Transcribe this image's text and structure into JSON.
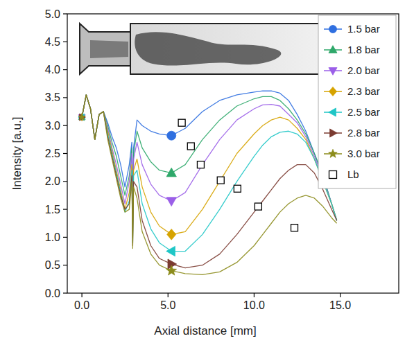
{
  "chart_data": {
    "type": "line",
    "x_label": "Axial distance [mm]",
    "y_label": "Intensity [a.u.]",
    "xlim": [
      -0.85,
      18.4
    ],
    "ylim": [
      0,
      5
    ],
    "xticks": [
      {
        "value": 0,
        "label": "0.0"
      },
      {
        "value": 5,
        "label": "5.0"
      },
      {
        "value": 10,
        "label": "10.0"
      },
      {
        "value": 15,
        "label": "15.0"
      }
    ],
    "yticks": [
      {
        "value": 0,
        "label": "0.0"
      },
      {
        "value": 0.5,
        "label": "0.5"
      },
      {
        "value": 1,
        "label": "1.0"
      },
      {
        "value": 1.5,
        "label": "1.5"
      },
      {
        "value": 2,
        "label": "2.0"
      },
      {
        "value": 2.5,
        "label": "2.5"
      },
      {
        "value": 3,
        "label": "3.0"
      },
      {
        "value": 3.5,
        "label": "3.5"
      },
      {
        "value": 4,
        "label": "4.0"
      },
      {
        "value": 4.5,
        "label": "4.5"
      },
      {
        "value": 5,
        "label": "5.0"
      }
    ],
    "grid": false,
    "legend": "top-right",
    "x": [
      0,
      0.25,
      0.5,
      0.75,
      1.0,
      1.25,
      1.5,
      1.75,
      2.0,
      2.25,
      2.5,
      2.75,
      2.9,
      2.95,
      3.0,
      3.2,
      3.5,
      4.0,
      4.5,
      5.2,
      6.0,
      7.0,
      8.0,
      9.0,
      10.0,
      10.5,
      11.0,
      11.5,
      12.0,
      12.5,
      13.0,
      13.5,
      14.0,
      14.5,
      14.8
    ],
    "series": [
      {
        "name": "1.5 bar",
        "color": "#2f6fe0",
        "marker": "circle",
        "marker_x": [
          0,
          5.2
        ],
        "values": [
          3.15,
          3.55,
          3.3,
          2.75,
          3.2,
          3.25,
          3.05,
          2.8,
          2.6,
          2.3,
          1.9,
          2.3,
          2.7,
          1.5,
          2.6,
          3.1,
          3.0,
          2.9,
          2.85,
          2.82,
          2.95,
          3.25,
          3.45,
          3.55,
          3.6,
          3.62,
          3.62,
          3.58,
          3.45,
          3.2,
          2.9,
          2.5,
          2.1,
          1.6,
          1.3
        ]
      },
      {
        "name": "1.8 bar",
        "color": "#2ea86a",
        "marker": "triangle-up",
        "marker_x": [
          0,
          5.2
        ],
        "values": [
          3.15,
          3.55,
          3.3,
          2.75,
          3.2,
          3.25,
          3.0,
          2.7,
          2.45,
          2.1,
          1.75,
          2.1,
          2.6,
          1.3,
          2.5,
          2.9,
          2.6,
          2.35,
          2.2,
          2.15,
          2.3,
          2.75,
          3.1,
          3.35,
          3.48,
          3.52,
          3.52,
          3.45,
          3.3,
          3.1,
          2.85,
          2.5,
          2.1,
          1.6,
          1.3
        ]
      },
      {
        "name": "2.0 bar",
        "color": "#9b5fe8",
        "marker": "triangle-down",
        "marker_x": [
          0,
          5.2
        ],
        "values": [
          3.15,
          3.55,
          3.3,
          2.75,
          3.2,
          3.25,
          2.95,
          2.6,
          2.3,
          1.95,
          1.6,
          2.0,
          2.5,
          1.1,
          2.4,
          2.7,
          2.3,
          1.95,
          1.75,
          1.65,
          1.8,
          2.3,
          2.75,
          3.1,
          3.3,
          3.37,
          3.38,
          3.35,
          3.2,
          3.05,
          2.8,
          2.45,
          2.05,
          1.6,
          1.3
        ]
      },
      {
        "name": "2.3 bar",
        "color": "#d6a300",
        "marker": "diamond",
        "marker_x": [
          0,
          5.2
        ],
        "values": [
          3.15,
          3.55,
          3.3,
          2.75,
          3.2,
          3.25,
          2.9,
          2.55,
          2.2,
          1.85,
          1.5,
          1.8,
          2.3,
          1.0,
          2.2,
          2.4,
          1.9,
          1.45,
          1.2,
          1.05,
          1.1,
          1.5,
          2.0,
          2.5,
          2.85,
          3.0,
          3.1,
          3.15,
          3.1,
          2.95,
          2.75,
          2.4,
          2.0,
          1.6,
          1.3
        ]
      },
      {
        "name": "2.5 bar",
        "color": "#1fc6c6",
        "marker": "triangle-left",
        "marker_x": [
          0,
          5.2
        ],
        "values": [
          3.15,
          3.55,
          3.3,
          2.75,
          3.2,
          3.25,
          2.85,
          2.5,
          2.15,
          1.8,
          1.45,
          1.65,
          2.2,
          0.9,
          2.1,
          2.2,
          1.6,
          1.15,
          0.9,
          0.75,
          0.75,
          1.05,
          1.5,
          2.0,
          2.45,
          2.65,
          2.8,
          2.88,
          2.9,
          2.85,
          2.7,
          2.4,
          2.0,
          1.6,
          1.3
        ]
      },
      {
        "name": "2.8 bar",
        "color": "#7b3b31",
        "marker": "triangle-right",
        "marker_x": [
          0,
          5.2
        ],
        "values": [
          3.15,
          3.55,
          3.3,
          2.75,
          3.2,
          3.25,
          2.8,
          2.45,
          2.1,
          1.75,
          1.5,
          1.6,
          2.1,
          0.85,
          2.0,
          1.9,
          1.3,
          0.85,
          0.62,
          0.52,
          0.45,
          0.5,
          0.7,
          1.05,
          1.45,
          1.65,
          1.85,
          2.05,
          2.2,
          2.3,
          2.3,
          2.15,
          1.85,
          1.5,
          1.3
        ]
      },
      {
        "name": "3.0 bar",
        "color": "#8c8c1c",
        "marker": "star",
        "marker_x": [
          0,
          5.2
        ],
        "values": [
          3.15,
          3.55,
          3.3,
          2.75,
          3.2,
          3.25,
          2.75,
          2.4,
          2.05,
          1.7,
          1.45,
          1.5,
          2.0,
          0.8,
          1.9,
          1.7,
          1.1,
          0.7,
          0.5,
          0.4,
          0.35,
          0.33,
          0.38,
          0.55,
          0.85,
          1.05,
          1.25,
          1.45,
          1.6,
          1.7,
          1.75,
          1.7,
          1.55,
          1.35,
          1.25
        ]
      },
      {
        "name": "Lb",
        "type": "scatter",
        "color": "#000000",
        "marker": "square-open",
        "x": [
          5.8,
          6.33,
          6.9,
          8.06,
          9.03,
          10.24,
          12.34
        ],
        "values": [
          3.05,
          2.63,
          2.3,
          2.02,
          1.87,
          1.55,
          1.17
        ]
      }
    ]
  }
}
